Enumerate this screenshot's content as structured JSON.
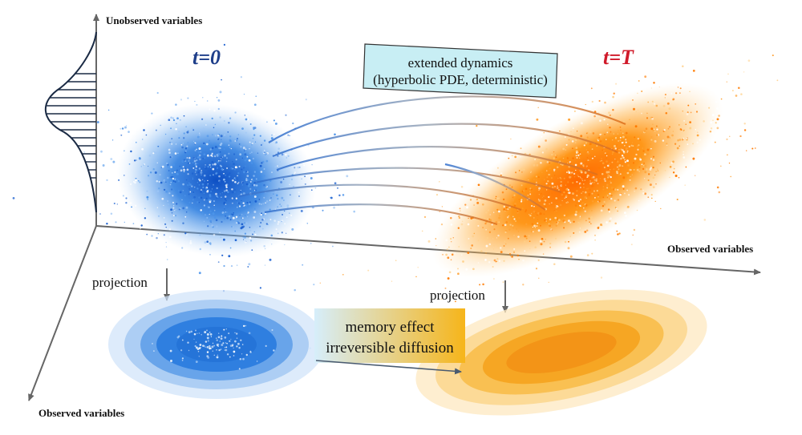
{
  "axes": {
    "vertical_label": "Unobserved variables",
    "horizontal_label": "Observed variables",
    "depth_label": "Observed variables"
  },
  "times": {
    "start_label": "t=0",
    "start_color": "#1f3f8a",
    "end_label": "t=T",
    "end_color": "#d01a2a"
  },
  "dynamics_box": {
    "line1": "extended dynamics",
    "line2": "(hyperbolic PDE, deterministic)",
    "fill": "#c8eef4"
  },
  "memory_box": {
    "line1": "memory effect",
    "line2": "irreversible diffusion",
    "gradient_start": "#d6eefb",
    "gradient_end": "#f6b51a"
  },
  "projections": {
    "left_label": "projection",
    "right_label": "projection"
  },
  "colors": {
    "blue_cloud": "#2f7fe0",
    "orange_cloud": "#ff8c00"
  }
}
